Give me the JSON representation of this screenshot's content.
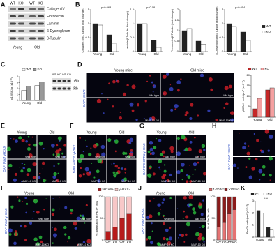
{
  "panels": {
    "A": {
      "label": "A",
      "lanes": [
        "WT",
        "KO",
        "WT",
        "KO"
      ],
      "bands": [
        "Collagen IV",
        "Fibronectin",
        "Laminin",
        "β-Dystroglycan",
        "β-Tubulin"
      ],
      "groups": [
        "Young",
        "Old"
      ]
    },
    "B": {
      "label": "B",
      "charts": [
        {
          "ylabel": "Collagen IV/β-Tubulin (fold change)",
          "annotation": "p=0.063",
          "categories": [
            "Young",
            "Old"
          ],
          "series": [
            {
              "name": "WT",
              "color": "#222222",
              "values": [
                1,
                0.6
              ]
            },
            {
              "name": "KO",
              "color": "#ffffff",
              "values": [
                0.95,
                0.3
              ]
            }
          ],
          "ylim": [
            0,
            1.5
          ],
          "yticks": [
            0,
            0.5,
            1,
            1.5
          ]
        },
        {
          "ylabel": "Laminin/β-Tubulin (fold change)",
          "annotation": "p=0.08",
          "categories": [
            "Young",
            "Old"
          ],
          "series": [
            {
              "name": "WT",
              "color": "#222222",
              "values": [
                1,
                0.4
              ]
            },
            {
              "name": "KO",
              "color": "#ffffff",
              "values": [
                1,
                0.15
              ]
            }
          ],
          "ylim": [
            0,
            1.5
          ],
          "yticks": [
            0,
            0.5,
            1,
            1.5
          ]
        },
        {
          "ylabel": "Fibronectin/β-Tubulin (fold change)",
          "categories": [
            "Young",
            "Old"
          ],
          "series": [
            {
              "name": "WT",
              "color": "#222222",
              "values": [
                1,
                0.5
              ]
            },
            {
              "name": "KO",
              "color": "#ffffff",
              "values": [
                1.1,
                0.35
              ]
            }
          ],
          "ylim": [
            0,
            2
          ],
          "yticks": [
            0,
            0.5,
            1,
            1.5,
            2
          ]
        },
        {
          "ylabel": "β-Dystroglycan/β-Tubulin (fold change)",
          "annotation": "p=0.054",
          "categories": [
            "Young",
            "Old"
          ],
          "series": [
            {
              "name": "WT",
              "color": "#222222",
              "values": [
                1,
                0.7
              ]
            },
            {
              "name": "KO",
              "color": "#ffffff",
              "values": [
                0.9,
                0.4
              ]
            }
          ],
          "ylim": [
            0,
            1.5
          ],
          "yticks": [
            0,
            0.5,
            1,
            1.5
          ]
        }
      ]
    },
    "C": {
      "label": "C",
      "chart": {
        "ylabel": "p16INK4a (x10⁻³)",
        "categories": [
          "Young",
          "Old"
        ],
        "series": [
          {
            "name": "WT",
            "color": "#ffffff",
            "values": [
              1.7,
              2.5
            ]
          },
          {
            "name": "KO",
            "color": "#999999",
            "values": [
              2.4,
              3.1
            ]
          }
        ],
        "ylim": [
          0,
          4
        ],
        "yticks": [
          0,
          1,
          2,
          3,
          4
        ]
      },
      "blot": {
        "lanes": [
          "WT",
          "KO",
          "WT",
          "KO"
        ],
        "bands": [
          "pRb",
          "tRb"
        ]
      }
    },
    "D": {
      "label": "D",
      "columns": [
        "Young mice",
        "Old mice"
      ],
      "rows": [
        "Wild type",
        "MMP-10 KO"
      ],
      "stain": "DAPI γH2AX",
      "chart": {
        "ylabel": "γH2AX+ cells/μm² (x10⁻³)",
        "categories": [
          "Young",
          "Old"
        ],
        "series": [
          {
            "name": "WT",
            "color": "#c62828",
            "values": [
              4,
              13
            ]
          },
          {
            "name": "KO",
            "color": "#f4a0a0",
            "values": [
              9,
              14
            ]
          }
        ],
        "ylim": [
          0,
          20
        ],
        "yticks": [
          0,
          5,
          10,
          15,
          20
        ]
      }
    },
    "E": {
      "label": "E",
      "columns": [
        "Young",
        "Old"
      ],
      "rows": [
        "Wild type",
        "MMP-10 KO"
      ],
      "stain": "DAPI Pax7 γH2AX"
    },
    "F": {
      "label": "F",
      "columns": [
        "Young",
        "Old"
      ],
      "rows": [
        "Wild type",
        "MMP-10 KO"
      ],
      "stain": "DAPI H4K20 γH2AX"
    },
    "G": {
      "label": "G",
      "columns": [
        "Young",
        "Old"
      ],
      "rows": [
        "Wild type",
        "MMP-10 KO"
      ],
      "stain": "DAPI PDGFRα γH2AX"
    },
    "H": {
      "label": "H",
      "stain": "DAPI Pax7 γH2AX"
    },
    "I": {
      "label": "I",
      "columns": [
        "Young",
        "Old"
      ],
      "rows": [
        "Wild type",
        "MMP-10 KO"
      ],
      "stain": "DAPI Pax7 γH2AX",
      "chart": {
        "ylabel": "% distribution of Pax7+ cells",
        "stacked": true,
        "categories": [
          "WT",
          "KO",
          "WT",
          "KO"
        ],
        "series": [
          {
            "name": "γH2AX+",
            "color": "#b71c1c",
            "values": [
              20,
              30,
              50,
              60
            ]
          },
          {
            "name": "γH2AX−",
            "color": "#f8c8c8",
            "values": [
              80,
              70,
              50,
              40
            ]
          }
        ],
        "ylim": [
          0,
          100
        ],
        "yticks": [
          0,
          50,
          100
        ]
      }
    },
    "J": {
      "label": "J",
      "columns": [
        "Young",
        "Old"
      ],
      "rows": [
        "Wild type",
        "MMP-10 KO"
      ],
      "stain": "DAPI Pax7 γH2AX",
      "chart": {
        "ylabel": "% of Pax7+ cells",
        "stacked": true,
        "categories": [
          "WT",
          "KO",
          "WT",
          "KO"
        ],
        "series": [
          {
            "name": "1-20 foci",
            "color": "#e57373",
            "values": [
              30,
              40,
              60,
              70
            ]
          },
          {
            "name": ">20 foci",
            "color": "#8b1a1a",
            "values": [
              70,
              60,
              40,
              30
            ]
          }
        ],
        "ylim": [
          0,
          100
        ],
        "yticks": [
          0,
          50,
          100
        ]
      }
    },
    "K": {
      "label": "K",
      "chart": {
        "ylabel": "Pax7+ cells/μm² (x10⁻³)",
        "annotation": "* #",
        "categories": [
          "young",
          "old"
        ],
        "series": [
          {
            "name": "WT",
            "color": "#222222",
            "values": [
              2.2,
              0.8
            ]
          },
          {
            "name": "KO",
            "color": "#ffffff",
            "values": [
              2,
              0.6
            ]
          }
        ],
        "ylim": [
          0,
          3
        ],
        "yticks": [
          0,
          1,
          2,
          3
        ]
      }
    }
  }
}
